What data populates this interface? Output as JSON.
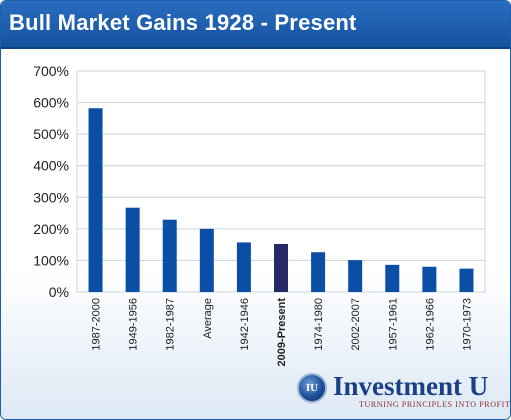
{
  "title": "Bull Market Gains 1928 - Present",
  "brand": {
    "emblem_text": "IU",
    "name": "Investment U",
    "tagline": "TURNING PRINCIPLES INTO PROFITS"
  },
  "colors": {
    "title_bar": "#1a5aa8",
    "bar": "#0a4ea6",
    "highlight_bar": "#252a66",
    "axis_text": "#222222",
    "grid": "#c9d4e2"
  },
  "chart_data": {
    "type": "bar",
    "categories": [
      "1987-2000",
      "1949-1956",
      "1982-1987",
      "Average",
      "1942-1946",
      "2009-Present",
      "1974-1980",
      "2002-2007",
      "1957-1961",
      "1962-1966",
      "1970-1973"
    ],
    "values": [
      582,
      267,
      229,
      200,
      157,
      152,
      126,
      101,
      86,
      80,
      74
    ],
    "highlighted_category": "2009-Present",
    "y_ticks": [
      "0%",
      "100%",
      "200%",
      "300%",
      "400%",
      "500%",
      "600%",
      "700%"
    ],
    "ylim": [
      0,
      700
    ],
    "grid": true,
    "legend": "none"
  }
}
